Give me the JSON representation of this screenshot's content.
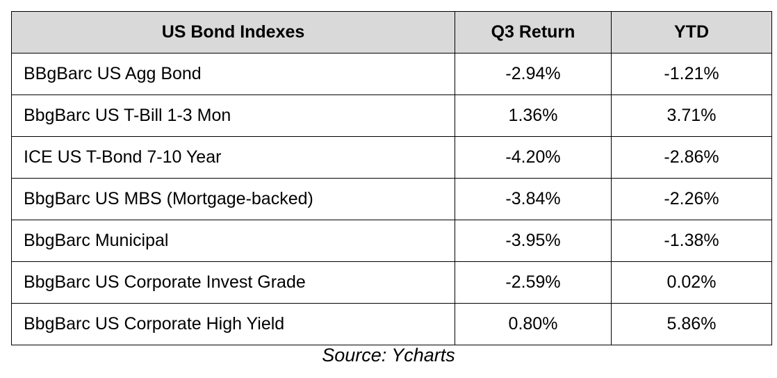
{
  "table": {
    "headers": [
      "US Bond Indexes",
      "Q3 Return",
      "YTD"
    ],
    "rows": [
      {
        "name": "BBgBarc US Agg Bond",
        "q3": "-2.94%",
        "ytd": "-1.21%"
      },
      {
        "name": "BbgBarc US T-Bill 1-3 Mon",
        "q3": "1.36%",
        "ytd": "3.71%"
      },
      {
        "name": "ICE US T-Bond 7-10 Year",
        "q3": "-4.20%",
        "ytd": "-2.86%"
      },
      {
        "name": "BbgBarc US MBS (Mortgage-backed)",
        "q3": "-3.84%",
        "ytd": "-2.26%"
      },
      {
        "name": "BbgBarc Municipal",
        "q3": "-3.95%",
        "ytd": "-1.38%"
      },
      {
        "name": "BbgBarc US Corporate Invest Grade",
        "q3": "-2.59%",
        "ytd": "0.02%"
      },
      {
        "name": "BbgBarc US Corporate High Yield",
        "q3": "0.80%",
        "ytd": "5.86%"
      }
    ]
  },
  "source": "Source: Ycharts",
  "colors": {
    "header_bg": "#d9d9d9",
    "border": "#000000",
    "text": "#000000"
  }
}
